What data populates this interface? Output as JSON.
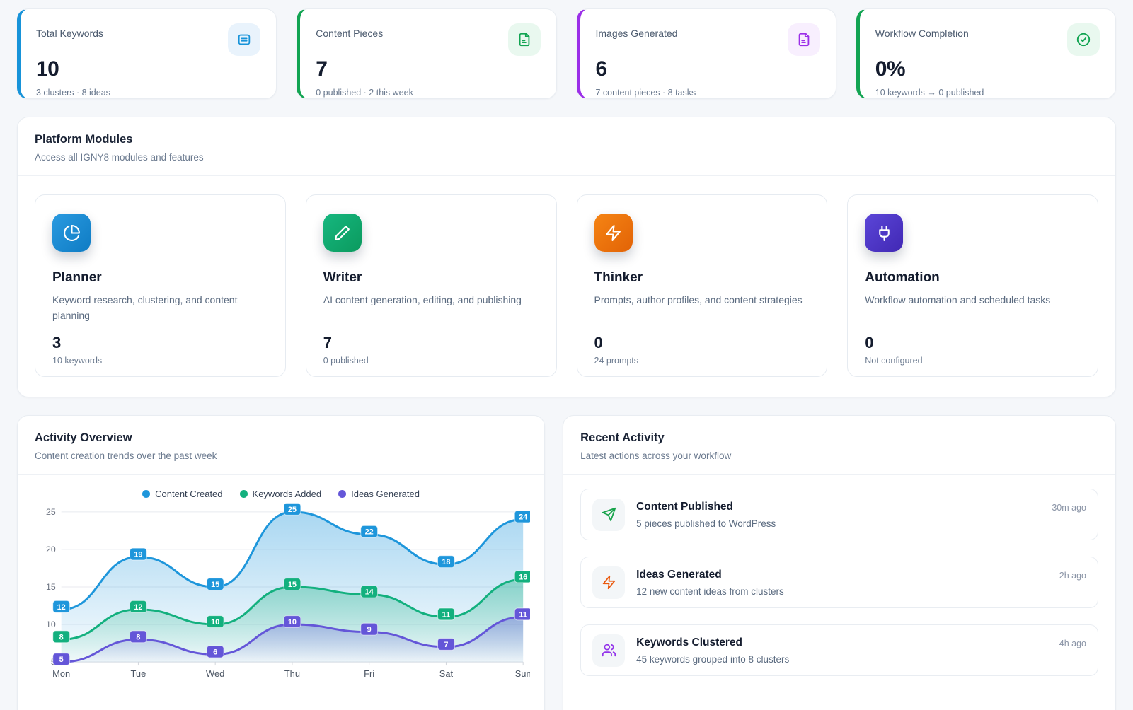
{
  "page": {
    "background": "#f5f7fa"
  },
  "stat_cards": [
    {
      "title": "Total Keywords",
      "value": "10",
      "subtitle": "3 clusters · 8 ideas",
      "accent": "#1793d9",
      "icon_bg": "#e9f3fc",
      "icon": "rows-icon"
    },
    {
      "title": "Content Pieces",
      "value": "7",
      "subtitle": "0 published · 2 this week",
      "accent": "#12a452",
      "icon_bg": "#e9f8ef",
      "icon": "file-icon"
    },
    {
      "title": "Images Generated",
      "value": "6",
      "subtitle": "7 content pieces · 8 tasks",
      "accent": "#9b2fe8",
      "icon_bg": "#f8effe",
      "icon": "file-icon"
    },
    {
      "title": "Workflow Completion",
      "value": "0%",
      "subtitle": "10 keywords → 0 published",
      "accent": "#12a452",
      "icon_bg": "#e9f8ef",
      "icon": "check-circle-icon"
    }
  ],
  "modules_panel": {
    "title": "Platform Modules",
    "subtitle": "Access all IGNY8 modules and features",
    "modules": [
      {
        "name": "Planner",
        "description": "Keyword research, clustering, and content planning",
        "value": "3",
        "caption": "10 keywords",
        "icon": "pie-chart-icon",
        "color_from": "#2a9ae0",
        "color_to": "#0f7cc4"
      },
      {
        "name": "Writer",
        "description": "AI content generation, editing, and publishing",
        "value": "7",
        "caption": "0 published",
        "icon": "pencil-icon",
        "color_from": "#16b77f",
        "color_to": "#0b9a5e"
      },
      {
        "name": "Thinker",
        "description": "Prompts, author profiles, and content strategies",
        "value": "0",
        "caption": "24 prompts",
        "icon": "lightning-icon",
        "color_from": "#f58414",
        "color_to": "#e26306"
      },
      {
        "name": "Automation",
        "description": "Workflow automation and scheduled tasks",
        "value": "0",
        "caption": "Not configured",
        "icon": "plug-icon",
        "color_from": "#5b46d8",
        "color_to": "#4128b4"
      }
    ]
  },
  "activity_overview": {
    "title": "Activity Overview",
    "subtitle": "Content creation trends over the past week"
  },
  "chart_data": {
    "type": "area",
    "title": "Activity Overview",
    "xlabel": "",
    "ylabel": "",
    "x": [
      "Mon",
      "Tue",
      "Wed",
      "Thu",
      "Fri",
      "Sat",
      "Sun"
    ],
    "series": [
      {
        "name": "Content Created",
        "color": "#1e96db",
        "values": [
          12,
          19,
          15,
          25,
          22,
          18,
          24
        ]
      },
      {
        "name": "Keywords Added",
        "color": "#13b07e",
        "values": [
          8,
          12,
          10,
          15,
          14,
          11,
          16
        ]
      },
      {
        "name": "Ideas Generated",
        "color": "#6456d8",
        "values": [
          5,
          8,
          6,
          10,
          9,
          7,
          11
        ]
      }
    ],
    "ylim": [
      5,
      25
    ],
    "yticks": [
      5,
      10,
      15,
      20,
      25
    ],
    "grid": true,
    "legend_position": "top",
    "point_labels": true
  },
  "recent_activity": {
    "title": "Recent Activity",
    "subtitle": "Latest actions across your workflow",
    "items": [
      {
        "title": "Content Published",
        "description": "5 pieces published to WordPress",
        "time": "30m ago",
        "icon": "send-icon",
        "icon_color": "#16a34a"
      },
      {
        "title": "Ideas Generated",
        "description": "12 new content ideas from clusters",
        "time": "2h ago",
        "icon": "lightning-icon",
        "icon_color": "#ea580c"
      },
      {
        "title": "Keywords Clustered",
        "description": "45 keywords grouped into 8 clusters",
        "time": "4h ago",
        "icon": "users-icon",
        "icon_color": "#9333ea"
      }
    ]
  }
}
